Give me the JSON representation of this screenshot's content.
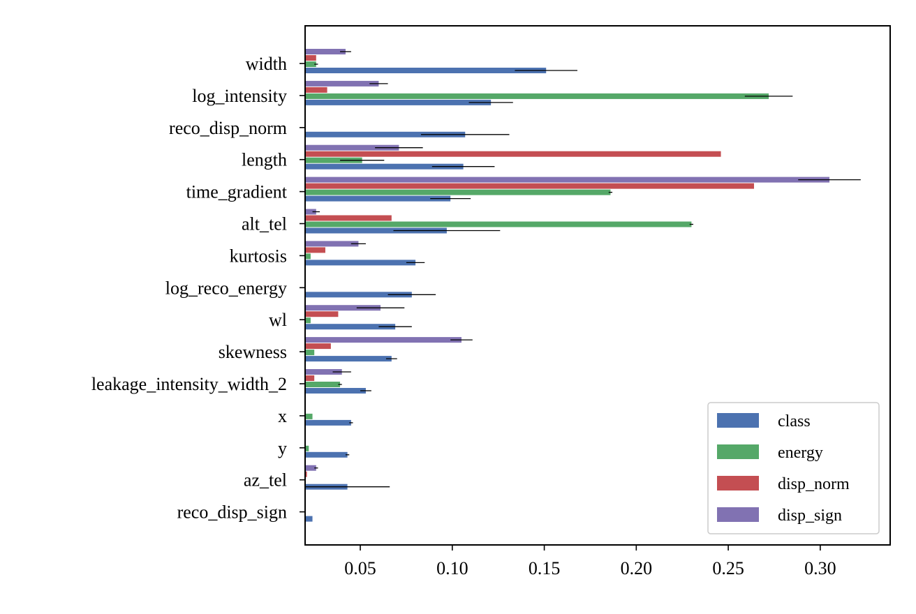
{
  "chart_data": {
    "type": "bar",
    "orientation": "horizontal",
    "title": "",
    "xlabel": "",
    "ylabel": "",
    "xlim": [
      0.02,
      0.338
    ],
    "xticks": [
      0.05,
      0.1,
      0.15,
      0.2,
      0.25,
      0.3
    ],
    "xtick_labels": [
      "0.05",
      "0.10",
      "0.15",
      "0.20",
      "0.25",
      "0.30"
    ],
    "grid": false,
    "legend_position": "lower-right",
    "categories": [
      "width",
      "log_intensity",
      "reco_disp_norm",
      "length",
      "time_gradient",
      "alt_tel",
      "kurtosis",
      "log_reco_energy",
      "wl",
      "skewness",
      "leakage_intensity_width_2",
      "x",
      "y",
      "az_tel",
      "reco_disp_sign"
    ],
    "series": [
      {
        "name": "class",
        "color": "#4c72b0",
        "values": [
          0.151,
          0.121,
          0.107,
          0.106,
          0.099,
          0.097,
          0.08,
          0.078,
          0.069,
          0.067,
          0.053,
          0.045,
          0.043,
          0.043,
          0.024
        ],
        "errors": [
          0.017,
          0.012,
          0.024,
          0.017,
          0.011,
          0.029,
          0.005,
          0.013,
          0.009,
          0.003,
          0.003,
          0.001,
          0.001,
          0.023,
          0.0
        ]
      },
      {
        "name": "energy",
        "color": "#55a868",
        "values": [
          0.026,
          0.272,
          null,
          0.051,
          0.186,
          0.23,
          0.023,
          null,
          0.023,
          0.025,
          0.039,
          0.024,
          0.022,
          null,
          null
        ],
        "errors": [
          0.001,
          0.013,
          null,
          0.012,
          0.001,
          0.001,
          0.0,
          null,
          0.0,
          0.0,
          0.001,
          0.0,
          0.0,
          null,
          null
        ]
      },
      {
        "name": "disp_norm",
        "color": "#c44e52",
        "values": [
          0.026,
          0.032,
          null,
          0.246,
          0.264,
          0.067,
          0.031,
          null,
          0.038,
          0.034,
          0.025,
          null,
          null,
          0.021,
          null
        ],
        "errors": [
          0.0,
          0.0,
          null,
          0.0,
          0.0,
          0.0,
          0.0,
          null,
          0.0,
          0.0,
          0.0,
          null,
          null,
          0.0,
          null
        ]
      },
      {
        "name": "disp_sign",
        "color": "#8172b2",
        "values": [
          0.042,
          0.06,
          null,
          0.071,
          0.305,
          0.026,
          0.049,
          null,
          0.061,
          0.105,
          0.04,
          null,
          null,
          0.026,
          null
        ],
        "errors": [
          0.003,
          0.005,
          null,
          0.013,
          0.017,
          0.002,
          0.004,
          null,
          0.013,
          0.006,
          0.005,
          null,
          null,
          0.001,
          null
        ]
      }
    ]
  }
}
